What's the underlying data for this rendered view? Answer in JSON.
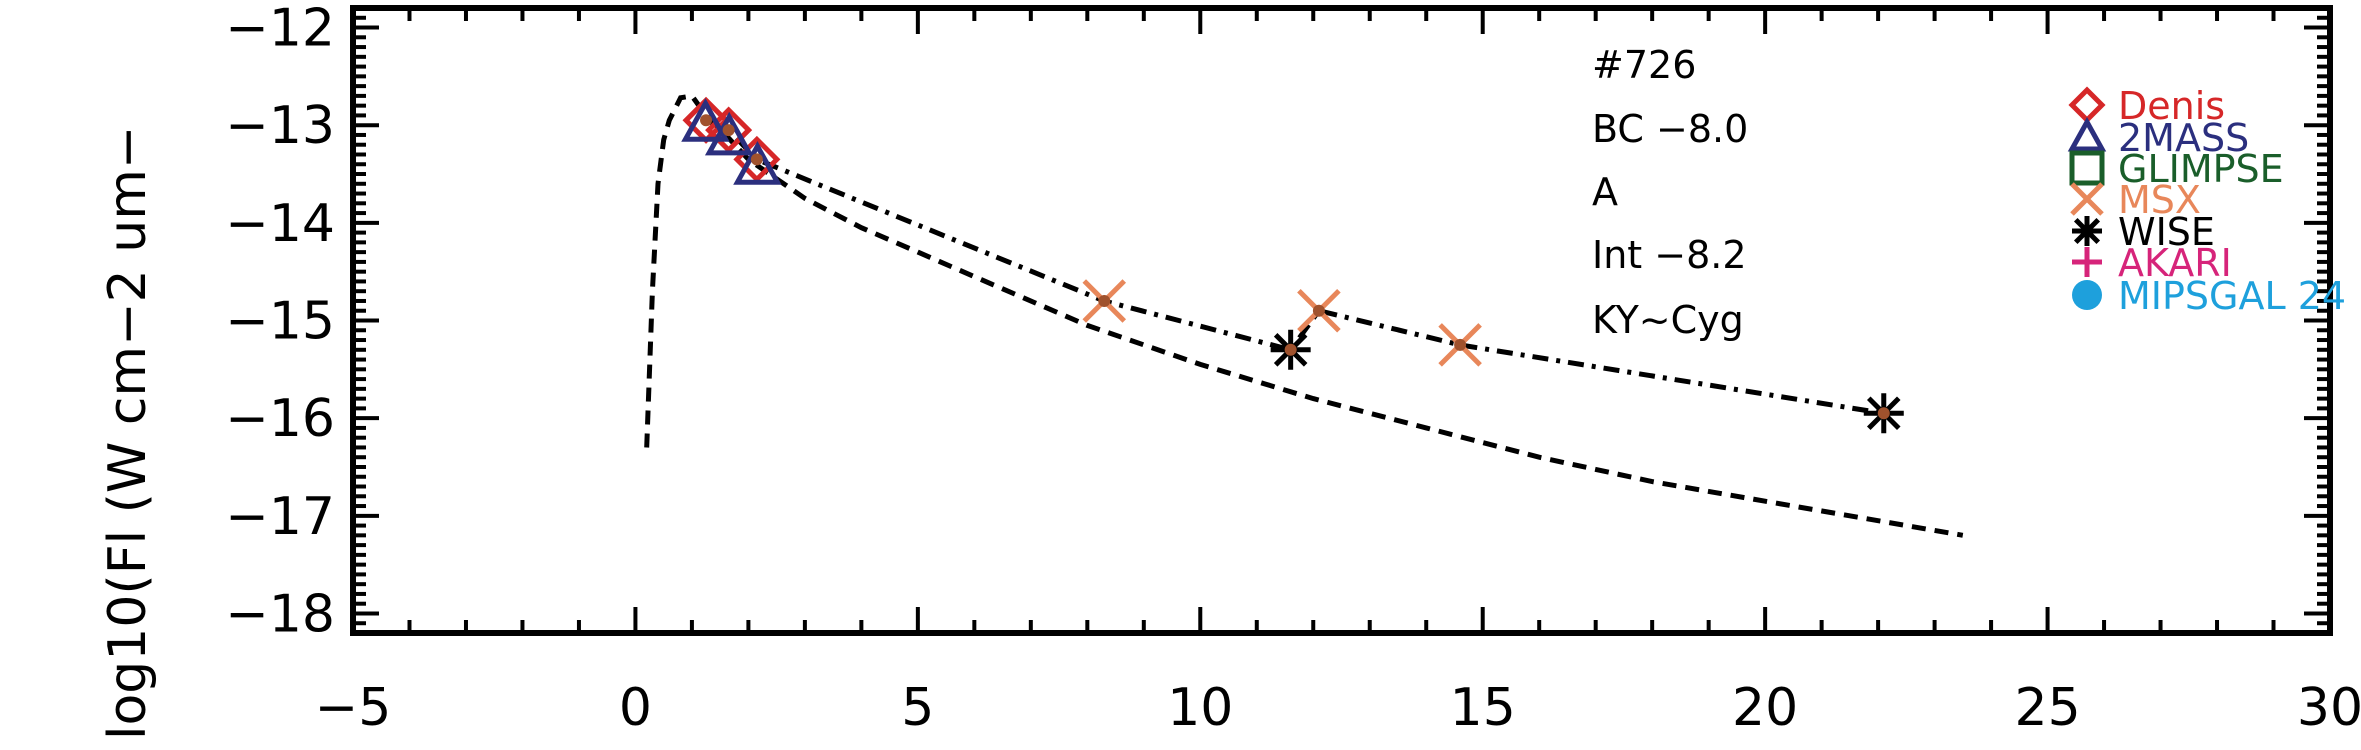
{
  "chart_data": {
    "type": "scatter",
    "ylabel": "log10(Fl (W cm−2 um−",
    "xlim": [
      -5,
      30
    ],
    "ylim": [
      -18.2,
      -11.8
    ],
    "x_ticks": [
      -5,
      0,
      5,
      10,
      15,
      20,
      25,
      30
    ],
    "x_tick_labels": [
      "−5",
      "0",
      "5",
      "10",
      "15",
      "20",
      "25",
      "30"
    ],
    "y_ticks": [
      -12,
      -13,
      -14,
      -15,
      -16,
      -17,
      -18
    ],
    "y_tick_labels": [
      "−12",
      "−13",
      "−14",
      "−15",
      "−16",
      "−17",
      "−18"
    ],
    "annotations": [
      "#726",
      "BC  −8.0",
      "A",
      "Int  −8.2",
      "KY~Cyg"
    ],
    "legend": [
      {
        "label": "Denis",
        "color": "#d62728",
        "marker": "diamond"
      },
      {
        "label": "2MASS",
        "color": "#2b2f7e",
        "marker": "triangle"
      },
      {
        "label": "GLIMPSE",
        "color": "#1a5e2a",
        "marker": "square"
      },
      {
        "label": "MSX",
        "color": "#e8875a",
        "marker": "x"
      },
      {
        "label": "WISE",
        "color": "#000000",
        "marker": "asterisk"
      },
      {
        "label": "AKARI",
        "color": "#d6247a",
        "marker": "plus"
      },
      {
        "label": "MIPSGAL 24",
        "color": "#1ea0dc",
        "marker": "circle"
      }
    ],
    "series": [
      {
        "name": "Denis",
        "marker": "diamond",
        "color": "#d62728",
        "x": [
          1.25,
          1.65,
          2.15
        ],
        "y": [
          -12.95,
          -13.05,
          -13.35
        ]
      },
      {
        "name": "2MASS",
        "marker": "triangle",
        "color": "#2b2f7e",
        "x": [
          1.24,
          1.66,
          2.16
        ],
        "y": [
          -12.98,
          -13.12,
          -13.42
        ]
      },
      {
        "name": "MSX",
        "marker": "x",
        "color": "#e8875a",
        "x": [
          8.3,
          12.1,
          14.6
        ],
        "y": [
          -14.8,
          -14.9,
          -15.25
        ]
      },
      {
        "name": "WISE",
        "marker": "asterisk",
        "color": "#000000",
        "x": [
          11.6,
          22.1
        ],
        "y": [
          -15.3,
          -15.95
        ]
      },
      {
        "name": "",
        "marker": "dot",
        "color": "#a0522d",
        "x": [
          1.25,
          1.65,
          2.15,
          8.3,
          11.6,
          12.1,
          14.6,
          22.1
        ],
        "y": [
          -12.95,
          -13.05,
          -13.35,
          -14.8,
          -15.3,
          -14.9,
          -15.25,
          -15.95
        ]
      }
    ],
    "curves": [
      {
        "style": "dashed",
        "x": [
          0.2,
          0.3,
          0.4,
          0.5,
          0.6,
          0.8,
          1.0,
          1.25,
          1.6,
          2.0,
          3.0,
          4.0,
          5.0,
          6.0,
          8.0,
          10.0,
          12.0,
          14.0,
          16.0,
          18.0,
          20.0,
          22.0,
          23.5
        ],
        "y": [
          -16.3,
          -14.7,
          -13.6,
          -13.15,
          -12.95,
          -12.72,
          -12.7,
          -12.9,
          -13.1,
          -13.35,
          -13.75,
          -14.05,
          -14.3,
          -14.55,
          -15.05,
          -15.45,
          -15.8,
          -16.1,
          -16.4,
          -16.65,
          -16.85,
          -17.05,
          -17.2
        ]
      },
      {
        "style": "dashdot",
        "x": [
          1.25,
          1.65,
          2.15,
          8.3,
          11.6,
          12.1,
          14.6,
          22.1
        ],
        "y": [
          -12.95,
          -13.05,
          -13.35,
          -14.8,
          -15.3,
          -14.9,
          -15.25,
          -15.95
        ]
      }
    ]
  }
}
